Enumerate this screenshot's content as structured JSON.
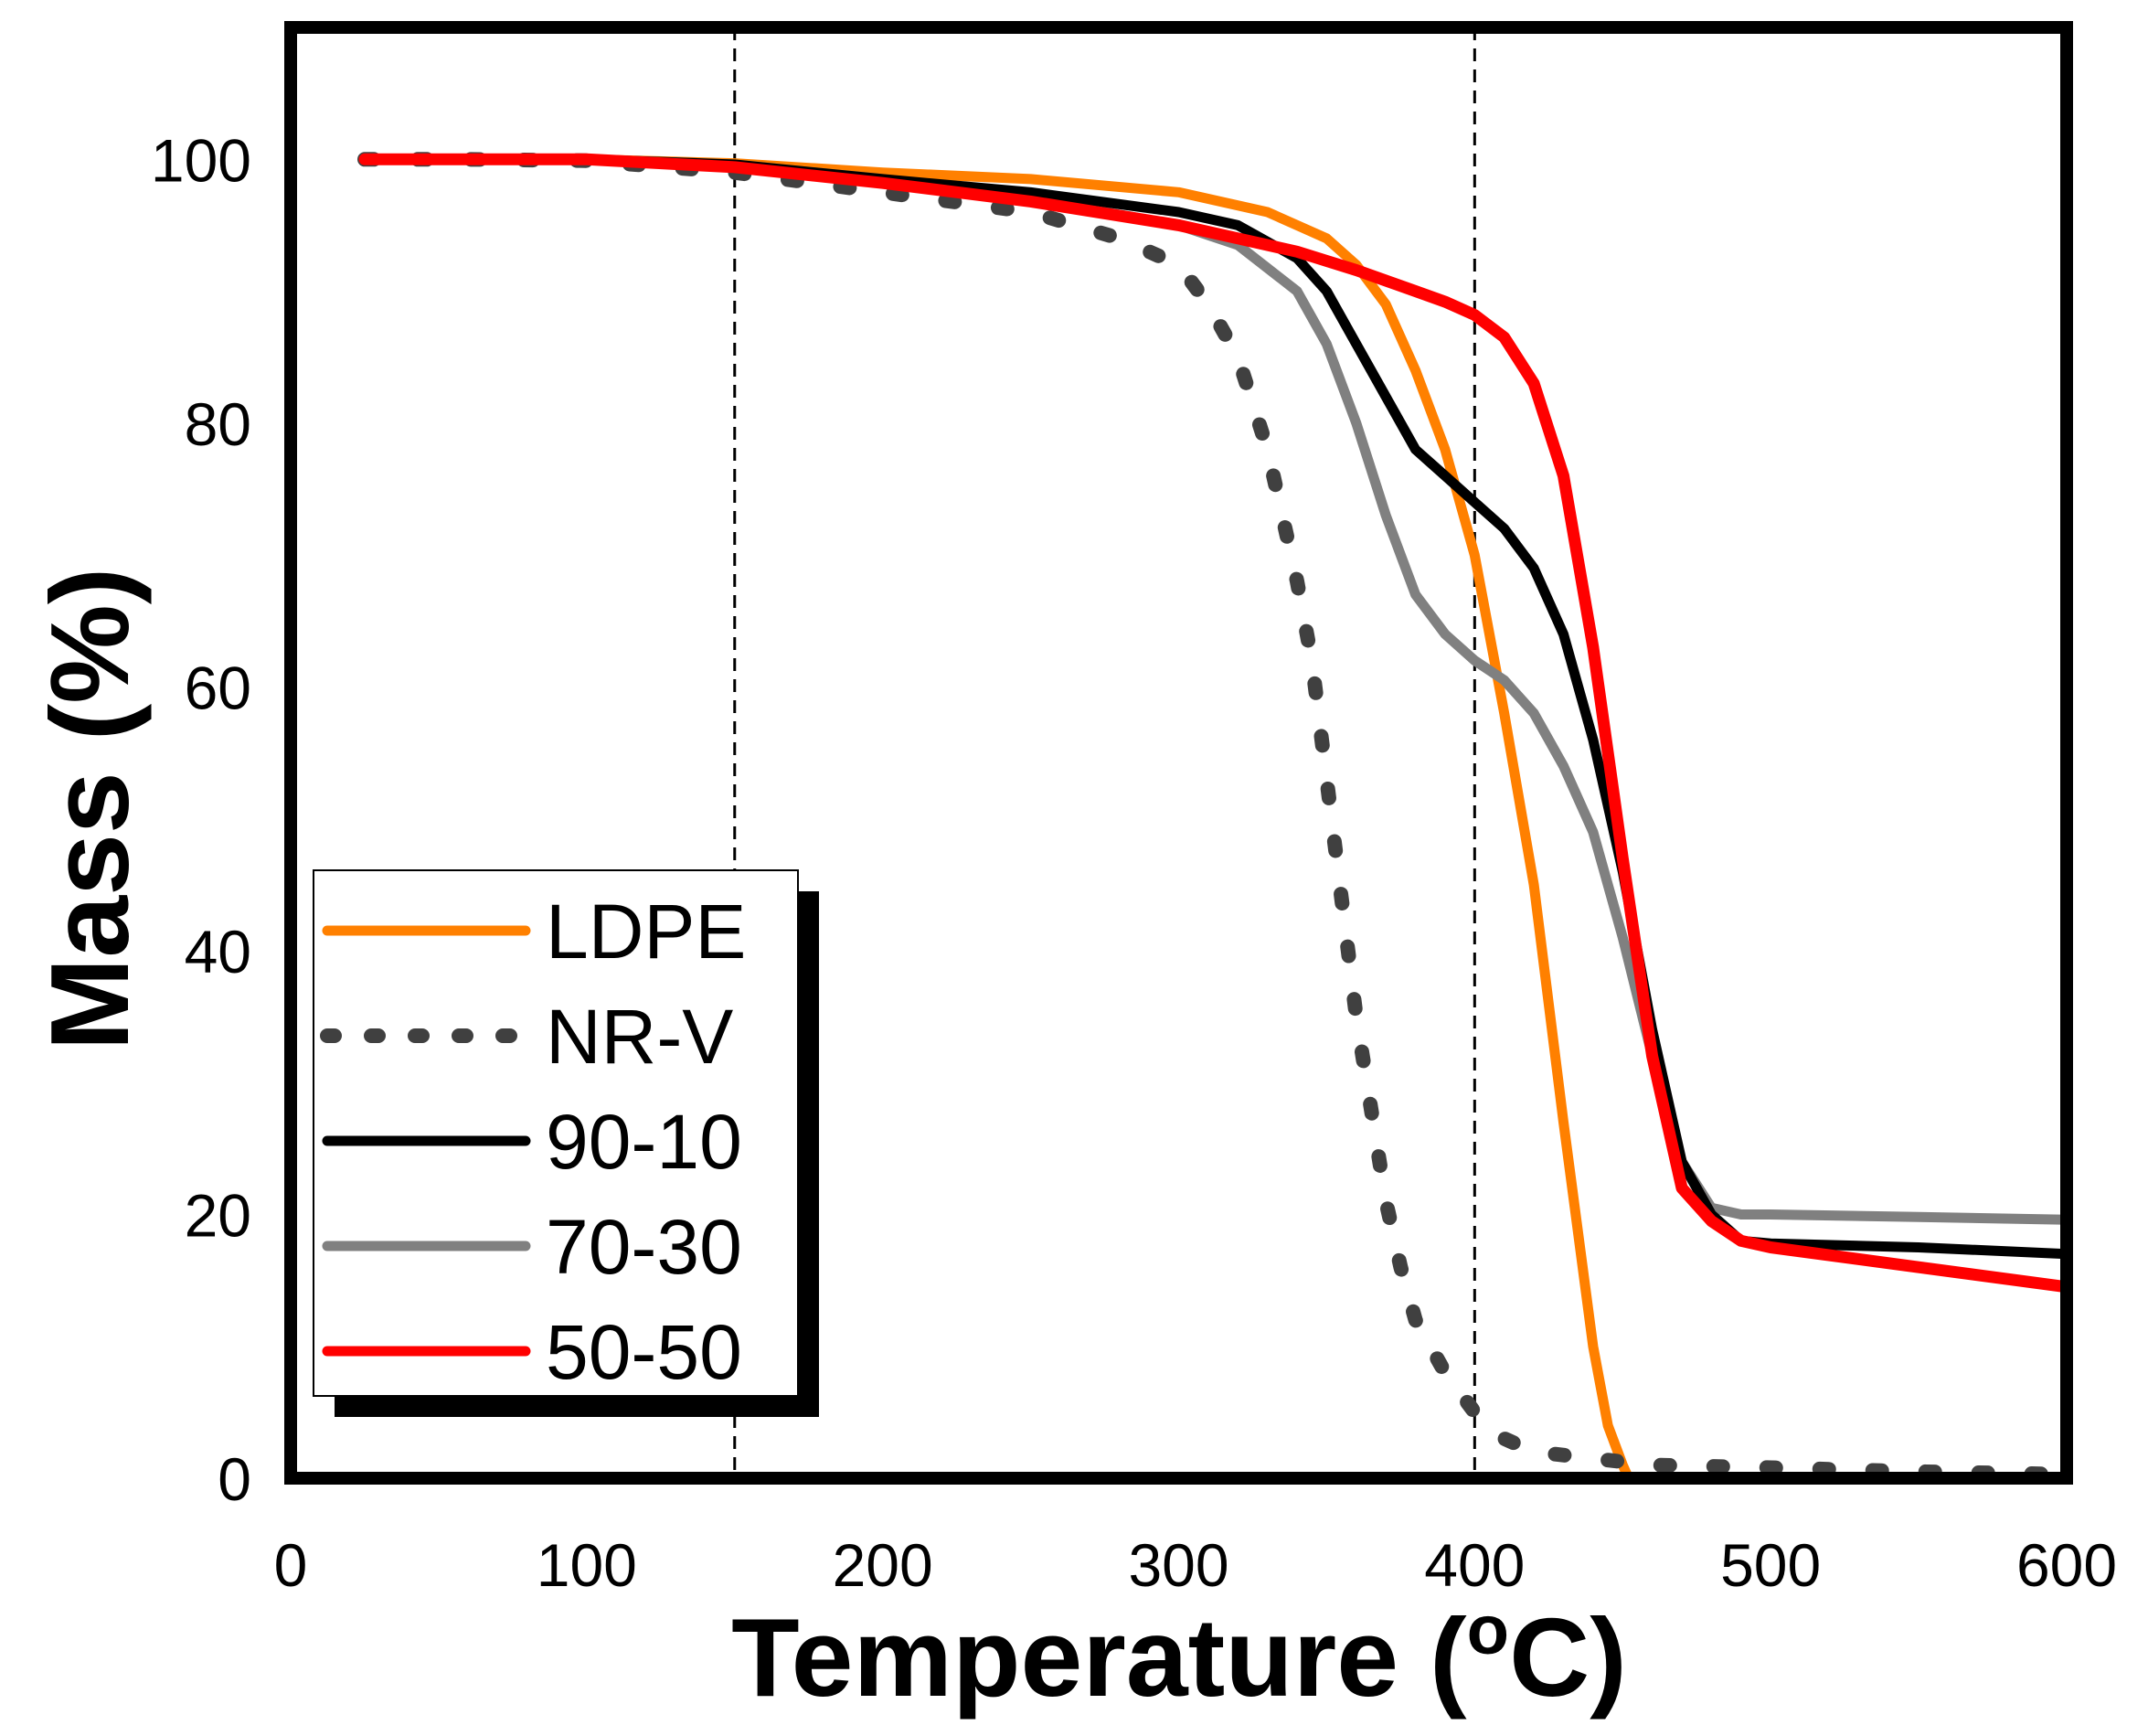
{
  "chart_data": {
    "type": "line",
    "xlabel": "Temperature (",
    "xlabel_sup": "o",
    "xlabel_end": "C)",
    "ylabel": "Mass (%)",
    "xlim": [
      0,
      600
    ],
    "ylim": [
      0,
      110
    ],
    "x_ticks": [
      "0",
      "100",
      "200",
      "300",
      "400",
      "500",
      "600"
    ],
    "y_ticks": [
      "0",
      "20",
      "40",
      "60",
      "80",
      "100"
    ],
    "grid": false,
    "legend_position": "lower-left",
    "reference_lines_x": [
      150,
      400
    ],
    "series": [
      {
        "name": "LDPE",
        "color": "#ff8000",
        "style": "solid",
        "x": [
          25,
          50,
          100,
          150,
          200,
          250,
          300,
          330,
          350,
          360,
          370,
          380,
          390,
          400,
          410,
          420,
          430,
          440,
          445,
          450,
          452
        ],
        "y": [
          100,
          100,
          100,
          99.7,
          99,
          98.5,
          97.5,
          96,
          94,
          92,
          89,
          84,
          78,
          70,
          58,
          45,
          27,
          10,
          4,
          1,
          0
        ]
      },
      {
        "name": "NR-V",
        "color": "#404040",
        "style": "dotted",
        "x": [
          25,
          40,
          60,
          100,
          150,
          200,
          250,
          280,
          300,
          310,
          320,
          330,
          340,
          345,
          350,
          355,
          360,
          365,
          370,
          375,
          380,
          390,
          400,
          410,
          420,
          440,
          460,
          500,
          550,
          600
        ],
        "y": [
          100,
          100,
          100,
          99.9,
          99,
          97.5,
          96,
          94,
          92,
          89,
          85,
          78,
          68,
          62,
          53,
          44,
          35,
          28,
          21,
          16,
          12,
          8,
          5,
          3,
          2,
          1.5,
          1,
          0.8,
          0.5,
          0.3
        ]
      },
      {
        "name": "90-10",
        "color": "#000000",
        "style": "solid",
        "x": [
          25,
          50,
          100,
          150,
          200,
          250,
          300,
          320,
          340,
          350,
          360,
          370,
          380,
          390,
          400,
          410,
          420,
          430,
          440,
          450,
          460,
          470,
          480,
          490,
          500,
          550,
          600
        ],
        "y": [
          100,
          100,
          100,
          99.6,
          98.5,
          97.5,
          96,
          95,
          92.5,
          90,
          86,
          82,
          78,
          76,
          74,
          72,
          69,
          64,
          56,
          46,
          34,
          24,
          20,
          18,
          17.8,
          17.5,
          17
        ]
      },
      {
        "name": "70-30",
        "color": "#808080",
        "style": "solid",
        "x": [
          25,
          50,
          100,
          150,
          200,
          250,
          300,
          320,
          340,
          350,
          360,
          370,
          380,
          390,
          400,
          410,
          420,
          430,
          440,
          450,
          460,
          470,
          480,
          490,
          500,
          550,
          600
        ],
        "y": [
          100,
          100,
          100,
          99.6,
          98.5,
          97,
          95,
          93.5,
          90,
          86,
          80,
          73,
          67,
          64,
          62,
          60.5,
          58,
          54,
          49,
          41,
          32,
          24,
          20.5,
          20,
          20,
          19.8,
          19.6
        ]
      },
      {
        "name": "50-50",
        "color": "#ff0000",
        "style": "solid",
        "x": [
          25,
          50,
          100,
          150,
          200,
          250,
          300,
          320,
          340,
          350,
          360,
          370,
          380,
          390,
          400,
          410,
          420,
          430,
          440,
          450,
          460,
          470,
          480,
          490,
          500,
          550,
          600
        ],
        "y": [
          100,
          100,
          100,
          99.4,
          98.2,
          96.8,
          95,
          94,
          93,
          92.3,
          91.6,
          90.8,
          90,
          89.2,
          88.2,
          86.5,
          83,
          76,
          63,
          47,
          32,
          22,
          19.5,
          18,
          17.5,
          16,
          14.5
        ]
      }
    ]
  }
}
